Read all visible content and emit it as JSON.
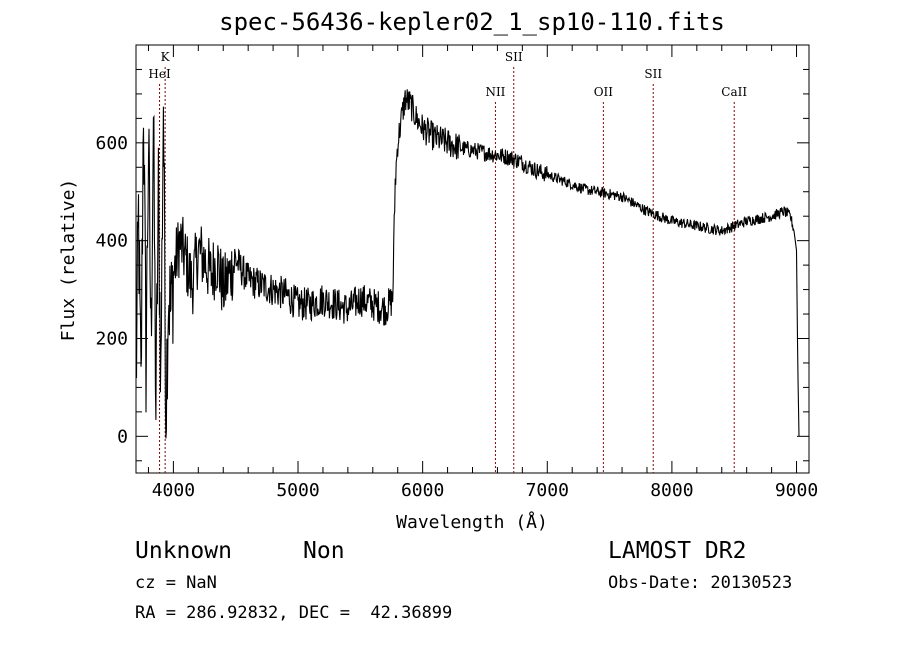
{
  "chart_data": {
    "type": "line",
    "title": "spec-56436-kepler02_1_sp10-110.fits",
    "xlabel": "Wavelength (Å)",
    "ylabel": "Flux (relative)",
    "xlim": [
      3700,
      9100
    ],
    "ylim": [
      -75,
      800
    ],
    "x_ticks": [
      4000,
      5000,
      6000,
      7000,
      8000,
      9000
    ],
    "y_ticks": [
      0,
      200,
      400,
      600
    ],
    "grid": false,
    "series": [
      {
        "values_description_free": true,
        "x": [
          3700,
          3720,
          3740,
          3760,
          3780,
          3800,
          3820,
          3840,
          3860,
          3880,
          3900,
          3920,
          3940,
          3960,
          3980,
          4000,
          4050,
          4100,
          4150,
          4200,
          4250,
          4300,
          4350,
          4400,
          4500,
          4600,
          4700,
          4800,
          4900,
          5000,
          5100,
          5200,
          5300,
          5400,
          5500,
          5600,
          5700,
          5760,
          5780,
          5800,
          5830,
          5860,
          5900,
          5950,
          6000,
          6050,
          6100,
          6200,
          6300,
          6400,
          6500,
          6600,
          6700,
          6800,
          6900,
          7000,
          7100,
          7200,
          7300,
          7400,
          7500,
          7600,
          7700,
          7800,
          7900,
          8000,
          8100,
          8200,
          8300,
          8400,
          8500,
          8600,
          8700,
          8800,
          8900,
          8950,
          8980,
          9000,
          9010,
          9020
        ],
        "y": [
          100,
          450,
          80,
          700,
          150,
          600,
          200,
          650,
          50,
          500,
          120,
          700,
          60,
          300,
          250,
          330,
          400,
          360,
          310,
          380,
          360,
          330,
          360,
          300,
          360,
          320,
          310,
          300,
          290,
          270,
          270,
          280,
          270,
          260,
          280,
          270,
          260,
          280,
          520,
          600,
          650,
          690,
          680,
          650,
          630,
          620,
          610,
          600,
          590,
          585,
          580,
          575,
          570,
          560,
          545,
          535,
          525,
          515,
          505,
          500,
          495,
          490,
          475,
          460,
          450,
          440,
          435,
          430,
          425,
          420,
          430,
          440,
          445,
          450,
          460,
          450,
          420,
          380,
          150,
          0
        ]
      }
    ],
    "emission_lines": [
      {
        "label": "K",
        "x": 3934
      },
      {
        "label": "HeI",
        "x": 3889
      },
      {
        "label": "NII",
        "x": 6584
      },
      {
        "label": "SII",
        "x": 6731
      },
      {
        "label": "OII",
        "x": 7450
      },
      {
        "label": "SII",
        "x": 7850
      },
      {
        "label": "CaII",
        "x": 8500
      }
    ],
    "line_color": "#000000",
    "marker_color": "#8b0000"
  },
  "info": {
    "class": "Unknown",
    "subclass": "Non",
    "cz": "cz = NaN",
    "coords": "RA = 286.92832, DEC =  42.36899",
    "survey": "LAMOST DR2",
    "obs_date": "Obs-Date: 20130523"
  }
}
